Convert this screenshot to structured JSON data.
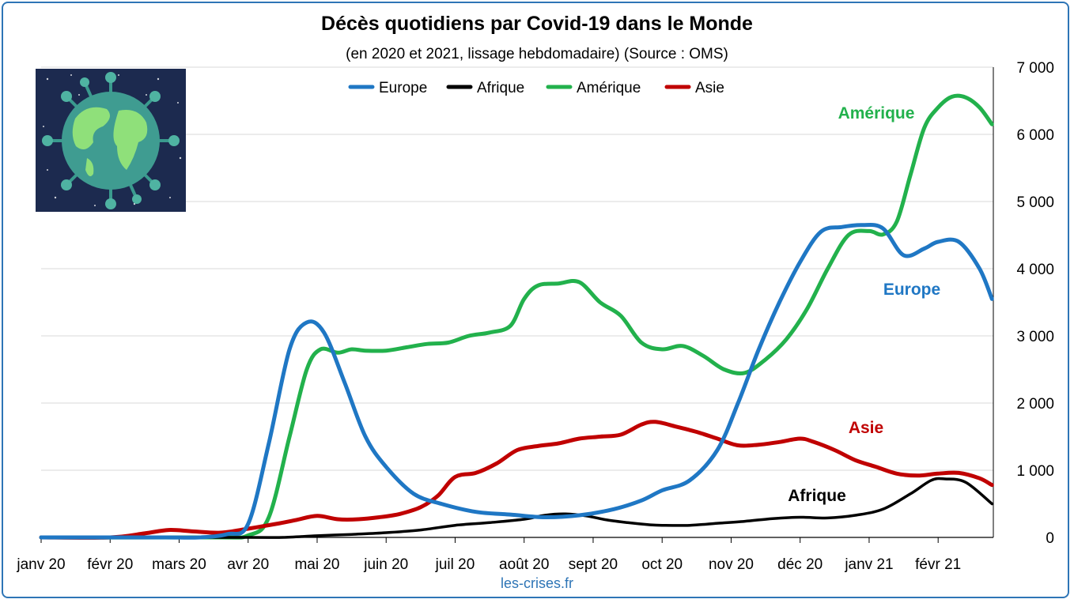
{
  "title": "Décès quotidiens par Covid-19 dans le Monde",
  "subtitle": "(en 2020 et 2021, lissage hebdomadaire) (Source : OMS)",
  "source_credit": "les-crises.fr",
  "chart_data": {
    "type": "line",
    "ylim": [
      0,
      7000
    ],
    "yticks": [
      0,
      1000,
      2000,
      3000,
      4000,
      5000,
      6000,
      7000
    ],
    "ytick_labels": [
      "0",
      "1 000",
      "2 000",
      "3 000",
      "4 000",
      "5 000",
      "6 000",
      "7 000"
    ],
    "xlim": [
      0,
      13.8
    ],
    "xticks": [
      0,
      1,
      2,
      3,
      4,
      5,
      6,
      7,
      8,
      9,
      10,
      11,
      12,
      13
    ],
    "xtick_labels": [
      "janv 20",
      "févr 20",
      "mars 20",
      "avr 20",
      "mai 20",
      "juin 20",
      "juil 20",
      "août 20",
      "sept 20",
      "oct 20",
      "nov 20",
      "déc 20",
      "janv 21",
      "févr 21"
    ],
    "grid": true,
    "yaxis_side": "right",
    "legend_position": "top-center",
    "series": [
      {
        "name": "Europe",
        "color": "#1f77c4",
        "label": "Europe",
        "x": [
          0,
          1,
          1.8,
          2.3,
          2.7,
          3.0,
          3.3,
          3.6,
          3.85,
          4.1,
          4.4,
          4.7,
          5.0,
          5.4,
          5.8,
          6.3,
          6.8,
          7.3,
          7.8,
          8.3,
          8.7,
          9.0,
          9.4,
          9.8,
          10.1,
          10.4,
          10.7,
          11.0,
          11.3,
          11.6,
          11.9,
          12.2,
          12.5,
          12.8,
          13.0,
          13.3,
          13.6,
          13.78
        ],
        "y": [
          0,
          0,
          0,
          0,
          50,
          200,
          1400,
          2800,
          3200,
          3050,
          2300,
          1500,
          1050,
          650,
          500,
          380,
          340,
          300,
          330,
          420,
          550,
          700,
          850,
          1300,
          2000,
          2800,
          3500,
          4100,
          4550,
          4620,
          4650,
          4600,
          4200,
          4300,
          4400,
          4400,
          4000,
          3550
        ]
      },
      {
        "name": "Afrique",
        "color": "#000000",
        "label": "Afrique",
        "x": [
          0,
          3.0,
          3.5,
          4.0,
          4.5,
          5.0,
          5.5,
          6.0,
          6.5,
          7.0,
          7.3,
          7.6,
          7.9,
          8.2,
          8.5,
          8.8,
          9.0,
          9.4,
          9.8,
          10.2,
          10.6,
          11.0,
          11.4,
          11.8,
          12.2,
          12.6,
          12.9,
          13.1,
          13.4,
          13.78
        ],
        "y": [
          0,
          0,
          0,
          25,
          45,
          70,
          110,
          180,
          220,
          270,
          330,
          350,
          320,
          260,
          220,
          190,
          180,
          180,
          210,
          240,
          280,
          300,
          290,
          330,
          420,
          650,
          850,
          870,
          820,
          500
        ]
      },
      {
        "name": "Amérique",
        "color": "#22b14c",
        "label": "Amérique",
        "x": [
          0,
          2.5,
          3.0,
          3.3,
          3.6,
          3.85,
          4.05,
          4.3,
          4.5,
          4.7,
          5.0,
          5.3,
          5.6,
          5.9,
          6.2,
          6.5,
          6.8,
          7.0,
          7.2,
          7.5,
          7.8,
          8.1,
          8.4,
          8.7,
          9.0,
          9.3,
          9.6,
          9.9,
          10.2,
          10.5,
          10.8,
          11.1,
          11.4,
          11.7,
          12.0,
          12.2,
          12.4,
          12.6,
          12.8,
          13.0,
          13.2,
          13.4,
          13.6,
          13.78
        ],
        "y": [
          0,
          0,
          30,
          300,
          1500,
          2500,
          2800,
          2750,
          2800,
          2780,
          2780,
          2830,
          2880,
          2900,
          3000,
          3050,
          3150,
          3550,
          3750,
          3780,
          3800,
          3500,
          3300,
          2900,
          2800,
          2850,
          2700,
          2500,
          2450,
          2650,
          2950,
          3400,
          4000,
          4500,
          4560,
          4510,
          4700,
          5400,
          6100,
          6400,
          6560,
          6550,
          6400,
          6150
        ]
      },
      {
        "name": "Asie",
        "color": "#c00000",
        "label": "Asie",
        "x": [
          0,
          1.0,
          1.5,
          1.85,
          2.2,
          2.6,
          3.0,
          3.4,
          3.7,
          4.0,
          4.3,
          4.6,
          4.9,
          5.2,
          5.5,
          5.75,
          6.0,
          6.3,
          6.6,
          6.9,
          7.2,
          7.5,
          7.8,
          8.1,
          8.4,
          8.7,
          8.9,
          9.2,
          9.5,
          9.8,
          10.1,
          10.4,
          10.7,
          11.0,
          11.2,
          11.5,
          11.8,
          12.1,
          12.4,
          12.7,
          13.0,
          13.3,
          13.6,
          13.78
        ],
        "y": [
          0,
          0,
          60,
          110,
          90,
          70,
          130,
          200,
          260,
          320,
          270,
          270,
          300,
          350,
          450,
          620,
          900,
          960,
          1100,
          1300,
          1360,
          1400,
          1470,
          1500,
          1530,
          1680,
          1720,
          1650,
          1570,
          1470,
          1370,
          1380,
          1420,
          1470,
          1420,
          1300,
          1150,
          1050,
          950,
          920,
          950,
          960,
          880,
          780
        ]
      }
    ]
  }
}
